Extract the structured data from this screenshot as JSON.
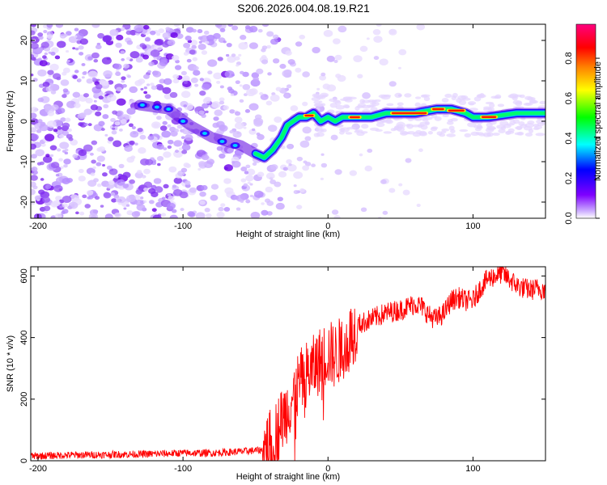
{
  "title": "S206.2026.004.08.19.R21",
  "chart_data": [
    {
      "type": "heatmap",
      "xlabel": "Height of straight line (km)",
      "ylabel": "Frequency (Hz)",
      "xlim": [
        -205,
        150
      ],
      "ylim": [
        -24,
        24
      ],
      "xticks": [
        -200,
        -100,
        0,
        100
      ],
      "yticks": [
        20,
        10,
        0,
        -10,
        -20
      ],
      "colorbar": {
        "label": "Normalized spectral amplitude",
        "range": [
          0.0,
          0.97
        ],
        "ticks": [
          0.0,
          0.2,
          0.4,
          0.6,
          0.8
        ],
        "colormap": [
          "#ffffff",
          "#7f00ff",
          "#0000ff",
          "#00ffff",
          "#00ff00",
          "#ffff00",
          "#ff8000",
          "#ff0000",
          "#ff007f"
        ]
      },
      "ridge": {
        "description": "signal frequency track vs height",
        "x": [
          -130,
          -110,
          -95,
          -80,
          -70,
          -60,
          -50,
          -44,
          -38,
          -32,
          -28,
          -24,
          -20,
          -15,
          -10,
          -5,
          0,
          5,
          10,
          15,
          20,
          30,
          40,
          60,
          75,
          85,
          95,
          100,
          110,
          130,
          150
        ],
        "y": [
          4,
          3,
          -1,
          -4,
          -5,
          -6,
          -8,
          -9,
          -7,
          -4,
          -1,
          0,
          1,
          1,
          2,
          0,
          1,
          0,
          1,
          1,
          1,
          1,
          2,
          2,
          3,
          3,
          2,
          1,
          1,
          2,
          2
        ]
      }
    },
    {
      "type": "line",
      "xlabel": "Height of straight line (km)",
      "ylabel": "SNR (10 * v/v)",
      "xlim": [
        -205,
        150
      ],
      "ylim": [
        0,
        630
      ],
      "xticks": [
        -200,
        -100,
        0,
        100
      ],
      "yticks": [
        0,
        200,
        400,
        600
      ],
      "color": "#ff0000",
      "series": [
        {
          "name": "SNR",
          "x": [
            -205,
            -180,
            -150,
            -120,
            -100,
            -80,
            -60,
            -45,
            -38,
            -32,
            -25,
            -20,
            -15,
            -10,
            -5,
            0,
            5,
            10,
            15,
            20,
            25,
            30,
            40,
            50,
            60,
            65,
            70,
            75,
            80,
            85,
            90,
            95,
            100,
            105,
            110,
            115,
            120,
            125,
            130,
            135,
            140,
            145,
            150
          ],
          "y": [
            15,
            18,
            20,
            22,
            25,
            25,
            30,
            35,
            70,
            130,
            200,
            250,
            280,
            300,
            330,
            350,
            340,
            370,
            400,
            440,
            450,
            460,
            480,
            490,
            510,
            500,
            470,
            460,
            480,
            520,
            530,
            520,
            520,
            560,
            590,
            600,
            610,
            590,
            570,
            560,
            555,
            560,
            555
          ]
        }
      ]
    }
  ]
}
